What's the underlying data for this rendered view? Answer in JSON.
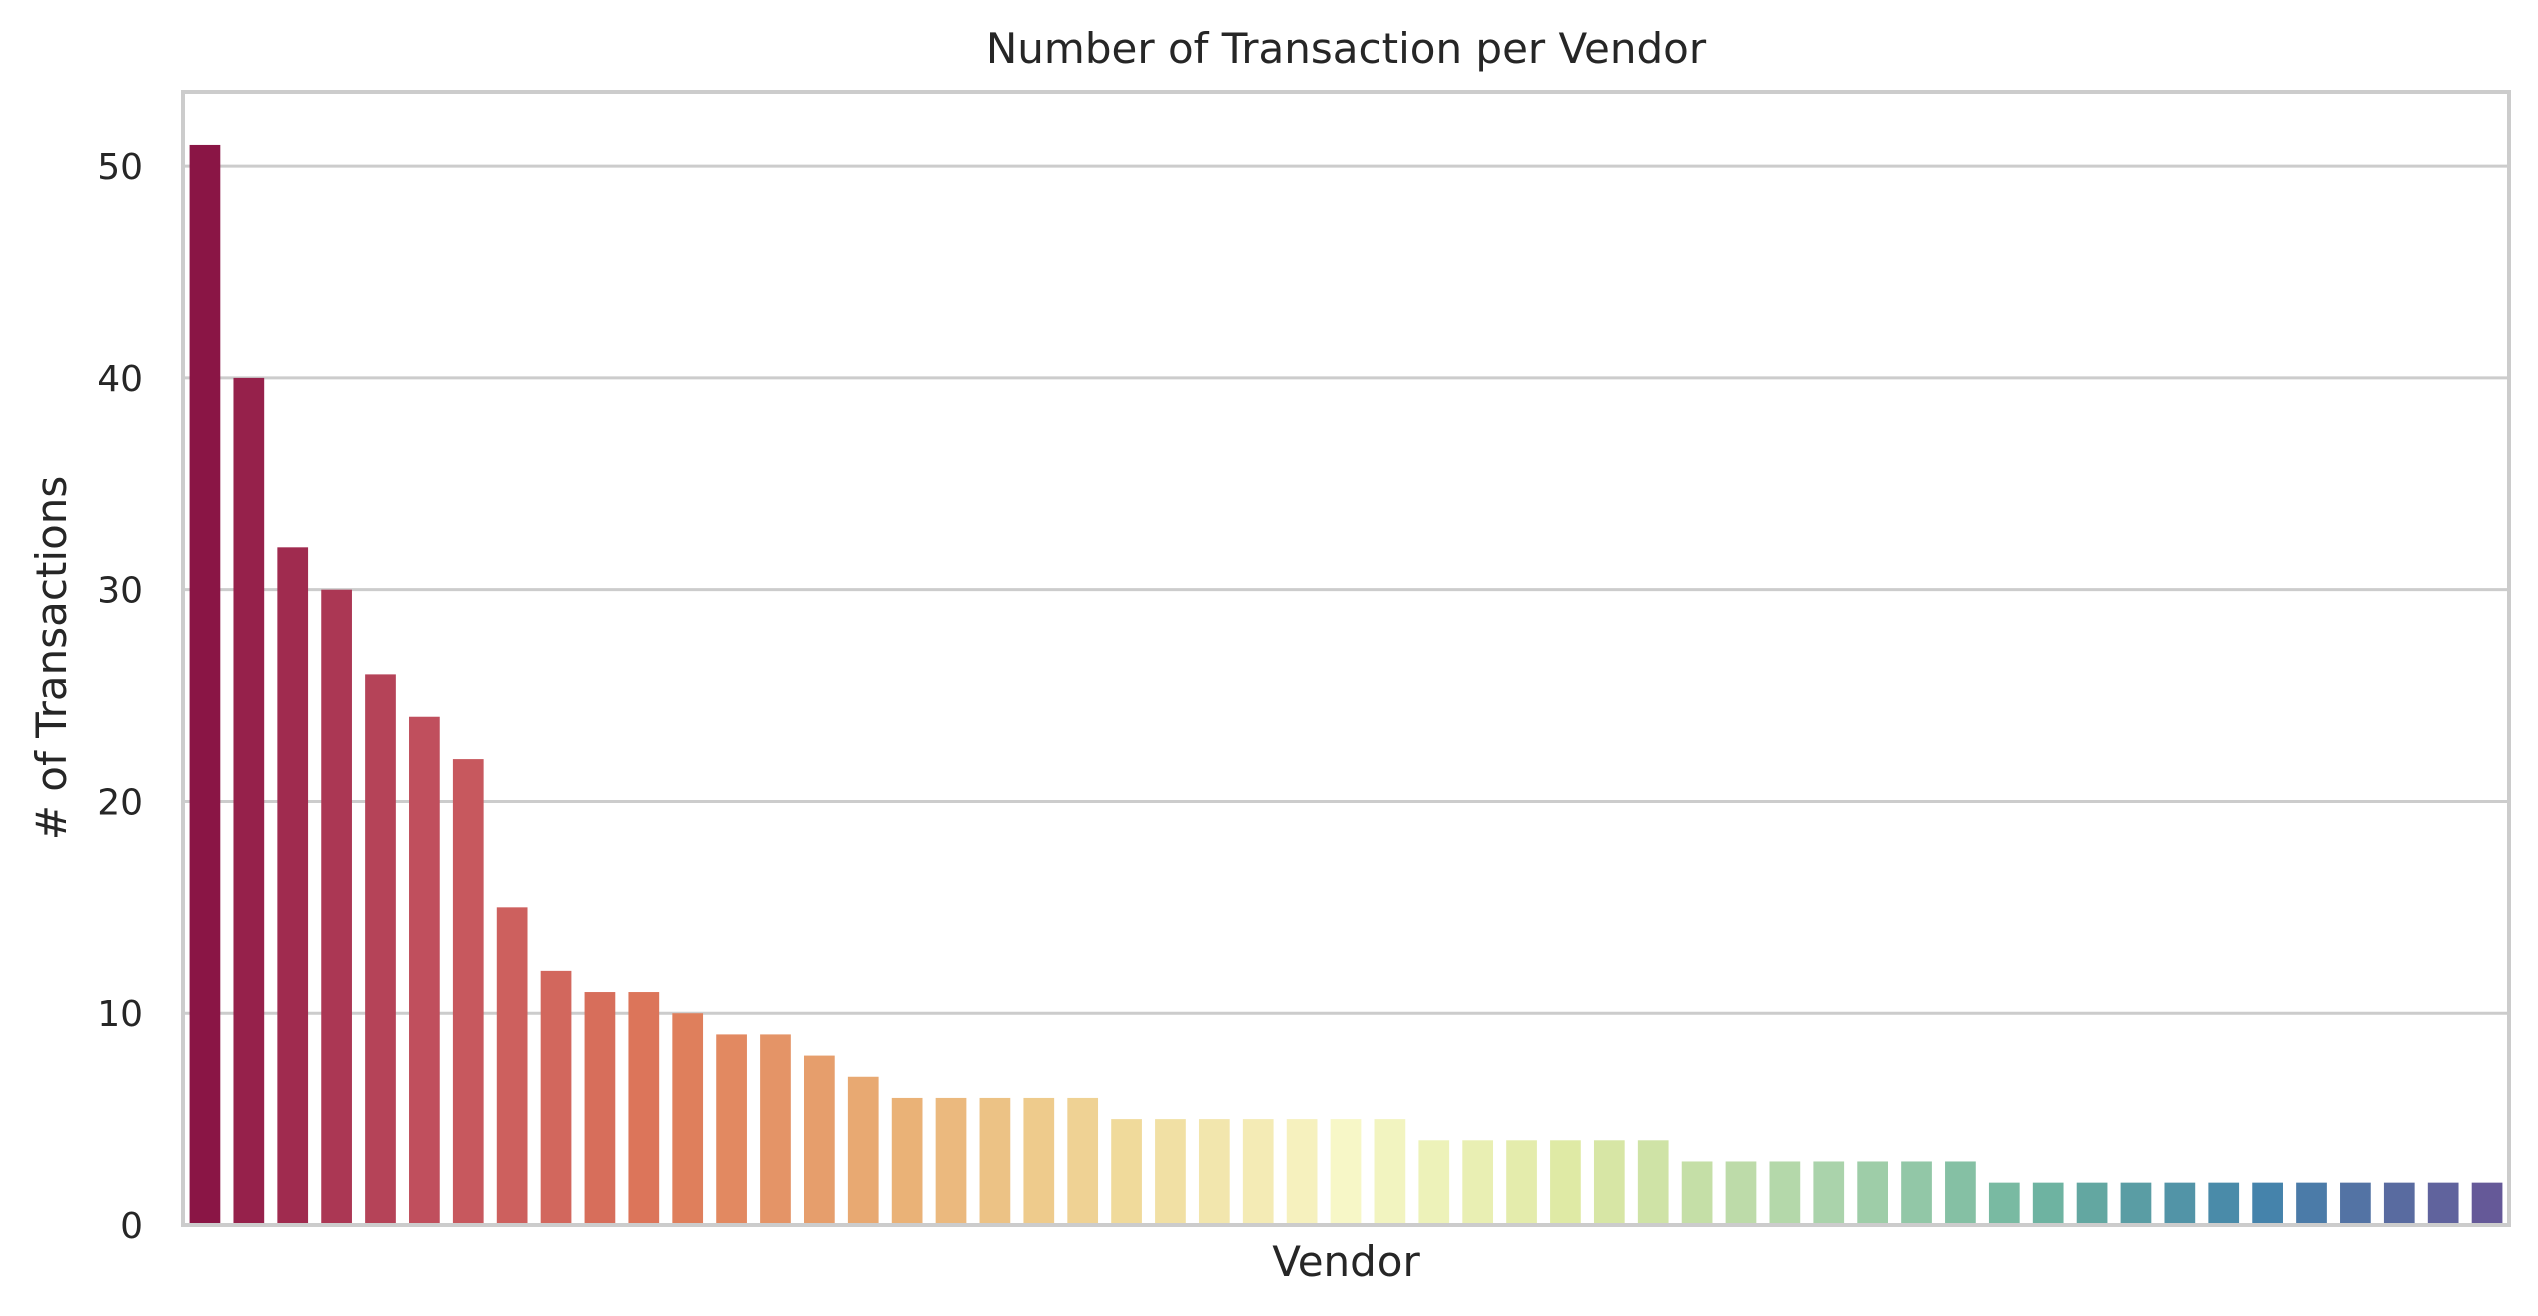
{
  "chart_data": {
    "type": "bar",
    "title": "Number of Transaction per Vendor",
    "xlabel": "Vendor",
    "ylabel": "# of Transactions",
    "ylim": [
      0,
      53.5
    ],
    "yticks": [
      0,
      10,
      20,
      30,
      40,
      50
    ],
    "grid": "horizontal",
    "palette": "Spectral",
    "values": [
      51,
      40,
      32,
      30,
      26,
      24,
      22,
      15,
      12,
      11,
      11,
      10,
      9,
      9,
      8,
      7,
      6,
      6,
      6,
      6,
      6,
      5,
      5,
      5,
      5,
      5,
      5,
      5,
      4,
      4,
      4,
      4,
      4,
      4,
      3,
      3,
      3,
      3,
      3,
      3,
      3,
      2,
      2,
      2,
      2,
      2,
      2,
      2,
      2,
      2,
      2,
      2,
      2
    ]
  },
  "colors": {
    "text": "#262626",
    "grid": "#cccccc",
    "background": "#ffffff"
  }
}
